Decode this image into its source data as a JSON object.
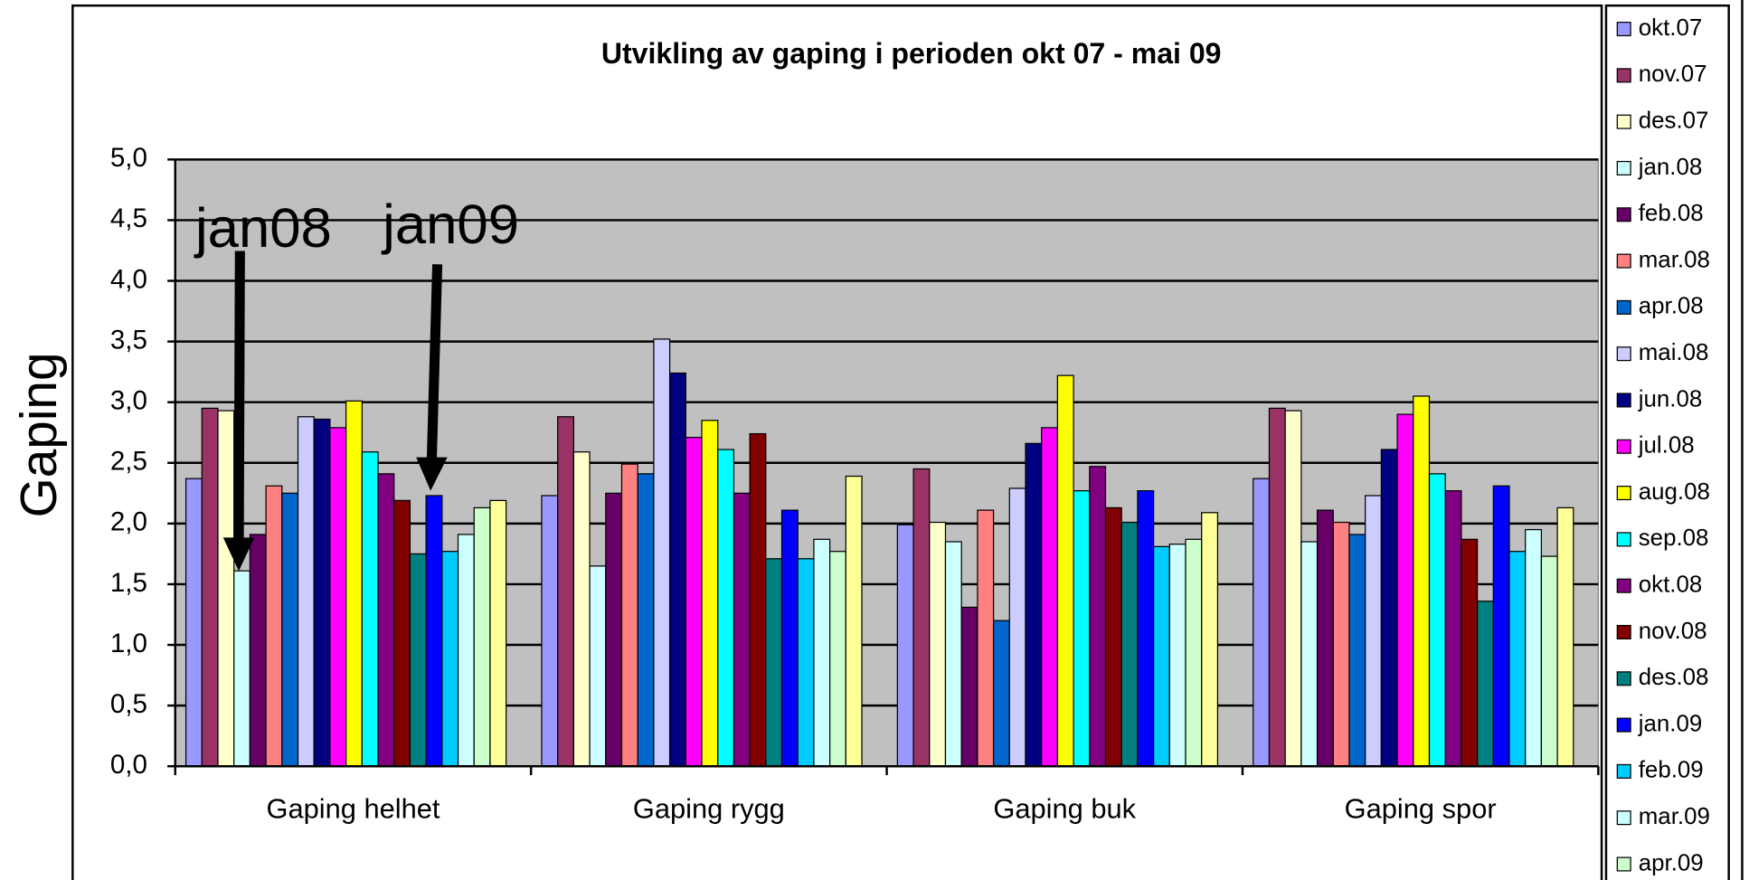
{
  "chart_data": {
    "type": "bar",
    "title": "Utvikling av gaping i perioden okt 07 - mai 09",
    "y_label": "Gaping",
    "annotations": [
      "jan08",
      "jan09"
    ],
    "categories": [
      "Gaping helhet",
      "Gaping rygg",
      "Gaping buk",
      "Gaping spor"
    ],
    "ylim": [
      0,
      5
    ],
    "yticks": [
      {
        "value": 0,
        "label": "0,0"
      },
      {
        "value": 0.5,
        "label": "0,5"
      },
      {
        "value": 1,
        "label": "1,0"
      },
      {
        "value": 1.5,
        "label": "1,5"
      },
      {
        "value": 2,
        "label": "2,0"
      },
      {
        "value": 2.5,
        "label": "2,5"
      },
      {
        "value": 3,
        "label": "3,0"
      },
      {
        "value": 3.5,
        "label": "3,5"
      },
      {
        "value": 4,
        "label": "4,0"
      },
      {
        "value": 4.5,
        "label": "4,5"
      },
      {
        "value": 5,
        "label": "5,0"
      }
    ],
    "grid": true,
    "legend": "right",
    "series": [
      {
        "name": "okt.07",
        "color": "#9999ff",
        "values": [
          2.37,
          2.23,
          1.99,
          2.37
        ]
      },
      {
        "name": "nov.07",
        "color": "#993366",
        "values": [
          2.95,
          2.88,
          2.45,
          2.95
        ]
      },
      {
        "name": "des.07",
        "color": "#ffffcc",
        "values": [
          2.93,
          2.59,
          2.01,
          2.93
        ]
      },
      {
        "name": "jan.08",
        "color": "#ccffff",
        "values": [
          1.61,
          1.65,
          1.85,
          1.85
        ]
      },
      {
        "name": "feb.08",
        "color": "#660066",
        "values": [
          1.91,
          2.25,
          1.31,
          2.11
        ]
      },
      {
        "name": "mar.08",
        "color": "#ff8080",
        "values": [
          2.31,
          2.49,
          2.11,
          2.01
        ]
      },
      {
        "name": "apr.08",
        "color": "#0066cc",
        "values": [
          2.25,
          2.41,
          1.2,
          1.91
        ]
      },
      {
        "name": "mai.08",
        "color": "#ccccff",
        "values": [
          2.88,
          3.52,
          2.29,
          2.23
        ]
      },
      {
        "name": "jun.08",
        "color": "#000080",
        "values": [
          2.86,
          3.24,
          2.66,
          2.61
        ]
      },
      {
        "name": "jul.08",
        "color": "#ff00ff",
        "values": [
          2.79,
          2.71,
          2.79,
          2.9
        ]
      },
      {
        "name": "aug.08",
        "color": "#ffff00",
        "values": [
          3.01,
          2.85,
          3.22,
          3.05
        ]
      },
      {
        "name": "sep.08",
        "color": "#00ffff",
        "values": [
          2.59,
          2.61,
          2.27,
          2.41
        ]
      },
      {
        "name": "okt.08",
        "color": "#800080",
        "values": [
          2.41,
          2.25,
          2.47,
          2.27
        ]
      },
      {
        "name": "nov.08",
        "color": "#800000",
        "values": [
          2.19,
          2.74,
          2.13,
          1.87
        ]
      },
      {
        "name": "des.08",
        "color": "#008080",
        "values": [
          1.75,
          1.71,
          2.01,
          1.36
        ]
      },
      {
        "name": "jan.09",
        "color": "#0000ff",
        "values": [
          2.23,
          2.11,
          2.27,
          2.31
        ]
      },
      {
        "name": "feb.09",
        "color": "#00ccff",
        "values": [
          1.77,
          1.71,
          1.81,
          1.77
        ]
      },
      {
        "name": "mar.09",
        "color": "#ccffff",
        "values": [
          1.91,
          1.87,
          1.83,
          1.95
        ]
      },
      {
        "name": "apr.09",
        "color": "#ccffcc",
        "values": [
          2.13,
          1.77,
          1.87,
          1.73
        ]
      },
      {
        "color": "#ffff99",
        "values": [
          2.19,
          2.39,
          2.09,
          2.13
        ]
      }
    ]
  }
}
